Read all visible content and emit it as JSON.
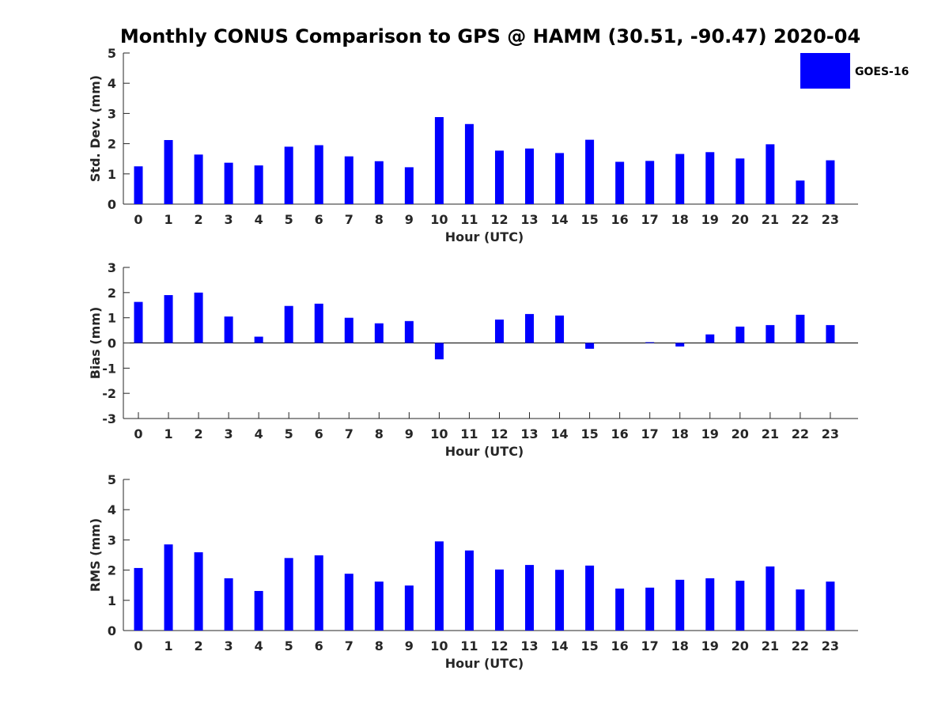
{
  "title": "Monthly CONUS Comparison to GPS @ HAMM (30.51, -90.47) 2020-04",
  "legend": {
    "label": "GOES-16",
    "placement": "top-right"
  },
  "colors": {
    "bar": "#0000ff",
    "axis": "#262626",
    "background": "#ffffff"
  },
  "chart_data": [
    {
      "type": "bar",
      "ylabel": "Std. Dev. (mm)",
      "xlabel": "Hour (UTC)",
      "ylim": [
        0,
        5
      ],
      "yticks": [
        0,
        1,
        2,
        3,
        4,
        5
      ],
      "categories": [
        "0",
        "1",
        "2",
        "3",
        "4",
        "5",
        "6",
        "7",
        "8",
        "9",
        "10",
        "11",
        "12",
        "13",
        "14",
        "15",
        "16",
        "17",
        "18",
        "19",
        "20",
        "21",
        "22",
        "23"
      ],
      "series": [
        {
          "name": "GOES-16",
          "values": [
            1.25,
            2.12,
            1.64,
            1.37,
            1.28,
            1.9,
            1.95,
            1.58,
            1.42,
            1.22,
            2.88,
            2.65,
            1.77,
            1.84,
            1.69,
            2.13,
            1.4,
            1.43,
            1.66,
            1.72,
            1.51,
            1.98,
            0.78,
            1.45
          ]
        }
      ],
      "grid": false
    },
    {
      "type": "bar",
      "ylabel": "Bias (mm)",
      "xlabel": "Hour (UTC)",
      "ylim": [
        -3,
        3
      ],
      "yticks": [
        -3,
        -2,
        -1,
        0,
        1,
        2,
        3
      ],
      "categories": [
        "0",
        "1",
        "2",
        "3",
        "4",
        "5",
        "6",
        "7",
        "8",
        "9",
        "10",
        "11",
        "12",
        "13",
        "14",
        "15",
        "16",
        "17",
        "18",
        "19",
        "20",
        "21",
        "22",
        "23"
      ],
      "series": [
        {
          "name": "GOES-16",
          "values": [
            1.63,
            1.9,
            2.0,
            1.05,
            0.25,
            1.47,
            1.56,
            1.0,
            0.78,
            0.87,
            -0.65,
            0.0,
            0.93,
            1.15,
            1.09,
            -0.23,
            0.0,
            0.03,
            -0.14,
            0.34,
            0.65,
            0.71,
            1.12,
            0.71
          ]
        }
      ],
      "grid": false
    },
    {
      "type": "bar",
      "ylabel": "RMS (mm)",
      "xlabel": "Hour (UTC)",
      "ylim": [
        0,
        5
      ],
      "yticks": [
        0,
        1,
        2,
        3,
        4,
        5
      ],
      "categories": [
        "0",
        "1",
        "2",
        "3",
        "4",
        "5",
        "6",
        "7",
        "8",
        "9",
        "10",
        "11",
        "12",
        "13",
        "14",
        "15",
        "16",
        "17",
        "18",
        "19",
        "20",
        "21",
        "22",
        "23"
      ],
      "series": [
        {
          "name": "GOES-16",
          "values": [
            2.07,
            2.85,
            2.59,
            1.73,
            1.31,
            2.4,
            2.49,
            1.88,
            1.62,
            1.49,
            2.95,
            2.65,
            2.02,
            2.17,
            2.01,
            2.15,
            1.39,
            1.42,
            1.68,
            1.73,
            1.65,
            2.12,
            1.36,
            1.62
          ]
        }
      ],
      "grid": false
    }
  ]
}
